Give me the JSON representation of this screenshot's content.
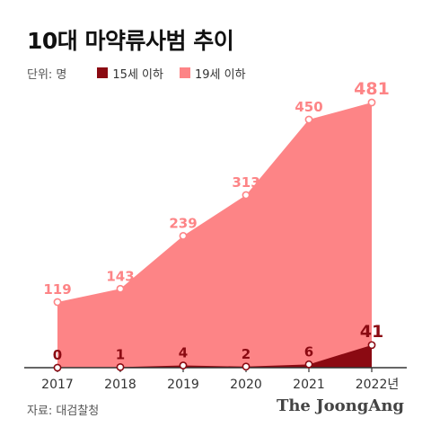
{
  "header": {
    "title": "10대 마약류사범 추이",
    "unit": "단위: 명"
  },
  "legend": {
    "items": [
      {
        "label": "15세 이하",
        "color": "#8b0a12"
      },
      {
        "label": "19세 이하",
        "color": "#fd8486"
      }
    ]
  },
  "footer": {
    "source": "자료: 대검찰청",
    "brand": "The JoongAng"
  },
  "chart_data": {
    "type": "area",
    "categories": [
      "2017",
      "2018",
      "2019",
      "2020",
      "2021",
      "2022년"
    ],
    "ylim": [
      0,
      500
    ],
    "series": [
      {
        "name": "19세 이하",
        "values": [
          119,
          143,
          239,
          313,
          450,
          481
        ],
        "color": "#fd8486",
        "label_color": "#fd8486"
      },
      {
        "name": "15세 이하",
        "values": [
          0,
          1,
          4,
          2,
          6,
          41
        ],
        "color": "#8b0a12",
        "label_color": "#8b0a12"
      }
    ],
    "axis_color": "#333333",
    "marker_fill": "#ffffff"
  }
}
